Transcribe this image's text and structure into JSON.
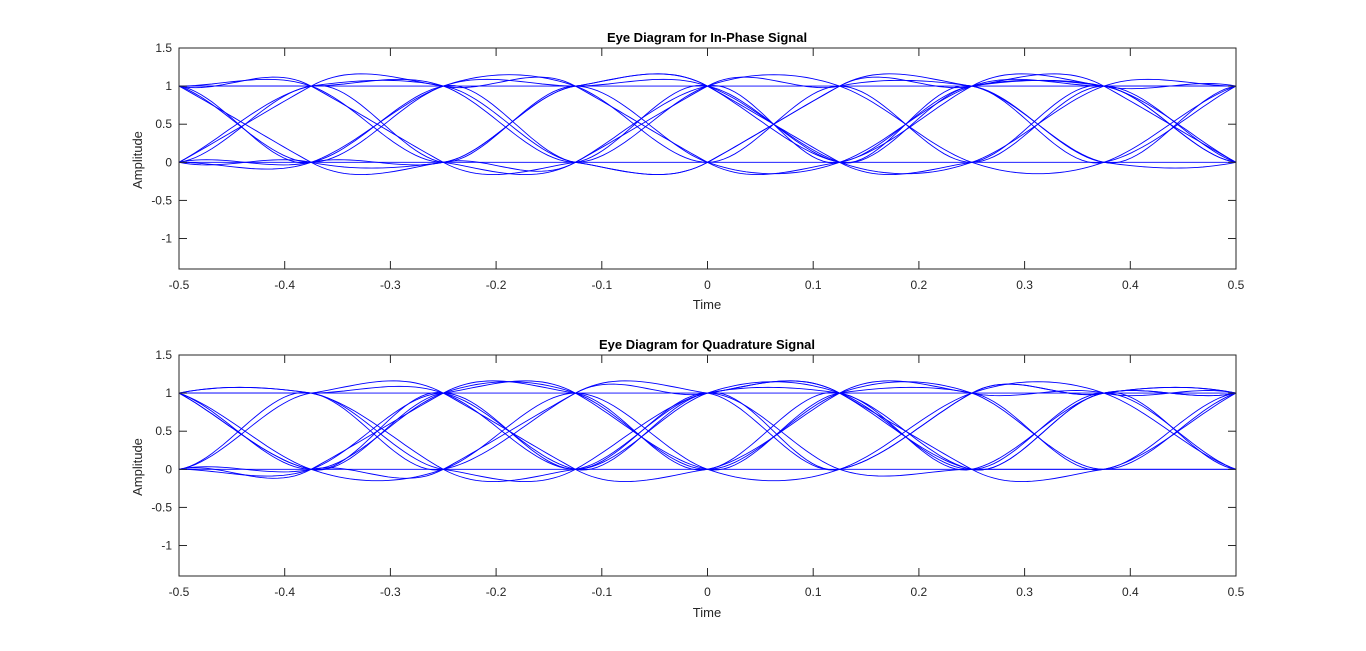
{
  "figure": {
    "colors": {
      "trace": "#0000ff",
      "axis": "#262626",
      "background": "#ffffff"
    }
  },
  "chart_data": [
    {
      "type": "line",
      "title": "Eye Diagram for In-Phase Signal",
      "xlabel": "Time",
      "ylabel": "Amplitude",
      "xlim": [
        -0.5,
        0.5
      ],
      "ylim": [
        -1.4,
        1.5
      ],
      "xticks": [
        -0.5,
        -0.4,
        -0.3,
        -0.2,
        -0.1,
        0,
        0.1,
        0.2,
        0.3,
        0.4,
        0.5
      ],
      "xtick_labels": [
        "-0.5",
        "-0.4",
        "-0.3",
        "-0.2",
        "-0.1",
        "0",
        "0.1",
        "0.2",
        "0.3",
        "0.4",
        "0.5"
      ],
      "yticks": [
        -1,
        -0.5,
        0,
        0.5,
        1,
        1.5
      ],
      "ytick_labels": [
        "-1",
        "-0.5",
        "0",
        "0.5",
        "1",
        "1.5"
      ],
      "grid": false,
      "symbol_boundaries": [
        -0.5,
        -0.375,
        -0.25,
        -0.125,
        0,
        0.125,
        0.25,
        0.375,
        0.5
      ],
      "trace_values": [
        0,
        1
      ],
      "trace_count": 12,
      "overshoot_max": 1.33,
      "undershoot_min": -0.35,
      "series": [
        {
          "values_at_boundaries": [
            1,
            1,
            0,
            0,
            1,
            0,
            1,
            1,
            1
          ]
        },
        {
          "values_at_boundaries": [
            1,
            0,
            1,
            1,
            0,
            1,
            0,
            1,
            0
          ]
        },
        {
          "values_at_boundaries": [
            0,
            1,
            1,
            0,
            0,
            1,
            1,
            0,
            1
          ]
        },
        {
          "values_at_boundaries": [
            0,
            0,
            0,
            1,
            1,
            0,
            0,
            1,
            0
          ]
        },
        {
          "values_at_boundaries": [
            1,
            1,
            0,
            1,
            0,
            0,
            1,
            1,
            1
          ]
        },
        {
          "values_at_boundaries": [
            0,
            1,
            0,
            0,
            1,
            1,
            1,
            0,
            0
          ]
        },
        {
          "values_at_boundaries": [
            1,
            0,
            0,
            1,
            1,
            0,
            1,
            0,
            1
          ]
        },
        {
          "values_at_boundaries": [
            0,
            0,
            1,
            1,
            1,
            0,
            0,
            1,
            1
          ]
        },
        {
          "values_at_boundaries": [
            1,
            0,
            1,
            0,
            0,
            1,
            1,
            1,
            0
          ]
        },
        {
          "values_at_boundaries": [
            0,
            1,
            1,
            1,
            0,
            0,
            1,
            1,
            0
          ]
        },
        {
          "values_at_boundaries": [
            1,
            1,
            1,
            0,
            1,
            1,
            0,
            0,
            1
          ]
        },
        {
          "values_at_boundaries": [
            0,
            0,
            0,
            0,
            1,
            0,
            1,
            1,
            0
          ]
        }
      ]
    },
    {
      "type": "line",
      "title": "Eye Diagram for Quadrature Signal",
      "xlabel": "Time",
      "ylabel": "Amplitude",
      "xlim": [
        -0.5,
        0.5
      ],
      "ylim": [
        -1.4,
        1.5
      ],
      "xticks": [
        -0.5,
        -0.4,
        -0.3,
        -0.2,
        -0.1,
        0,
        0.1,
        0.2,
        0.3,
        0.4,
        0.5
      ],
      "xtick_labels": [
        "-0.5",
        "-0.4",
        "-0.3",
        "-0.2",
        "-0.1",
        "0",
        "0.1",
        "0.2",
        "0.3",
        "0.4",
        "0.5"
      ],
      "yticks": [
        -1,
        -0.5,
        0,
        0.5,
        1,
        1.5
      ],
      "ytick_labels": [
        "-1",
        "-0.5",
        "0",
        "0.5",
        "1",
        "1.5"
      ],
      "grid": false,
      "symbol_boundaries": [
        -0.5,
        -0.375,
        -0.25,
        -0.125,
        0,
        0.125,
        0.25,
        0.375,
        0.5
      ],
      "trace_values": [
        0,
        1
      ],
      "trace_count": 12,
      "overshoot_max": 1.3,
      "undershoot_min": -0.34,
      "series": [
        {
          "values_at_boundaries": [
            1,
            0,
            1,
            1,
            0,
            1,
            1,
            1,
            1
          ]
        },
        {
          "values_at_boundaries": [
            1,
            1,
            1,
            0,
            1,
            1,
            0,
            1,
            0
          ]
        },
        {
          "values_at_boundaries": [
            0,
            0,
            0,
            1,
            1,
            0,
            1,
            1,
            1
          ]
        },
        {
          "values_at_boundaries": [
            0,
            1,
            0,
            0,
            1,
            1,
            0,
            0,
            1
          ]
        },
        {
          "values_at_boundaries": [
            1,
            0,
            1,
            1,
            0,
            1,
            1,
            0,
            1
          ]
        },
        {
          "values_at_boundaries": [
            1,
            1,
            0,
            1,
            1,
            1,
            0,
            1,
            0
          ]
        },
        {
          "values_at_boundaries": [
            0,
            1,
            1,
            0,
            0,
            1,
            0,
            1,
            1
          ]
        },
        {
          "values_at_boundaries": [
            1,
            0,
            0,
            1,
            0,
            0,
            1,
            1,
            0
          ]
        },
        {
          "values_at_boundaries": [
            0,
            0,
            1,
            1,
            0,
            1,
            1,
            0,
            1
          ]
        },
        {
          "values_at_boundaries": [
            1,
            0,
            1,
            0,
            1,
            1,
            0,
            1,
            1
          ]
        },
        {
          "values_at_boundaries": [
            0,
            0,
            1,
            0,
            1,
            0,
            0,
            0,
            0
          ]
        },
        {
          "values_at_boundaries": [
            1,
            1,
            0,
            0,
            1,
            0,
            1,
            1,
            1
          ]
        }
      ]
    }
  ]
}
